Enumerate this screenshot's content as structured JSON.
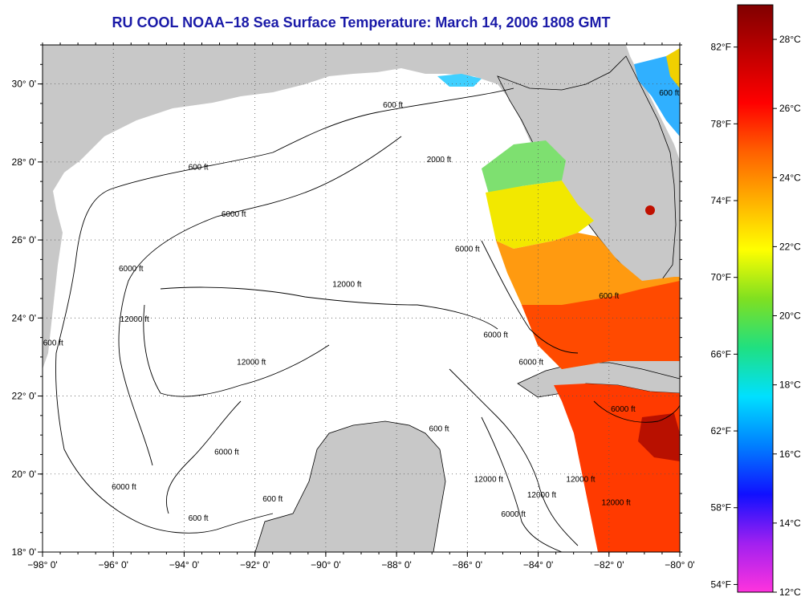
{
  "title": "RU COOL  NOAA−18  Sea Surface Temperature:  March 14, 2006 1808 GMT",
  "map": {
    "lon_range": [
      -98,
      -80
    ],
    "lat_range": [
      18,
      31
    ],
    "lon_ticks": [
      "−98° 0'",
      "−96° 0'",
      "−94° 0'",
      "−92° 0'",
      "−90° 0'",
      "−88° 0'",
      "−86° 0'",
      "−84° 0'",
      "−82° 0'",
      "−80° 0'"
    ],
    "lat_ticks": [
      "18° 0'",
      "20° 0'",
      "22° 0'",
      "24° 0'",
      "26° 0'",
      "28° 0'",
      "30° 0'"
    ],
    "grid": "dotted",
    "colors": {
      "land": "#c8c8c8",
      "ocean_no_data": "#ffffff",
      "contour": "#000000"
    },
    "contour_labels": [
      {
        "text": "600 ft",
        "lon": -88.1,
        "lat": 29.4
      },
      {
        "text": "600 ft",
        "lon": -93.6,
        "lat": 27.8
      },
      {
        "text": "2000 ft",
        "lon": -86.8,
        "lat": 28.0
      },
      {
        "text": "6000 ft",
        "lon": -92.6,
        "lat": 26.6
      },
      {
        "text": "6000 ft",
        "lon": -95.5,
        "lat": 25.2
      },
      {
        "text": "12000 ft",
        "lon": -89.4,
        "lat": 24.8
      },
      {
        "text": "12000 ft",
        "lon": -95.4,
        "lat": 23.9
      },
      {
        "text": "12000 ft",
        "lon": -92.1,
        "lat": 22.8
      },
      {
        "text": "600 ft",
        "lon": -97.7,
        "lat": 23.3
      },
      {
        "text": "6000 ft",
        "lon": -85.2,
        "lat": 23.5
      },
      {
        "text": "6000 ft",
        "lon": -84.2,
        "lat": 22.8
      },
      {
        "text": "6000 ft",
        "lon": -86.0,
        "lat": 25.7
      },
      {
        "text": "600 ft",
        "lon": -82.0,
        "lat": 24.5
      },
      {
        "text": "6000 ft",
        "lon": -92.8,
        "lat": 20.5
      },
      {
        "text": "6000 ft",
        "lon": -95.7,
        "lat": 19.6
      },
      {
        "text": "600 ft",
        "lon": -93.6,
        "lat": 18.8
      },
      {
        "text": "600 ft",
        "lon": -91.5,
        "lat": 19.3
      },
      {
        "text": "600 ft",
        "lon": -80.3,
        "lat": 29.7
      },
      {
        "text": "12000 ft",
        "lon": -82.8,
        "lat": 19.8
      },
      {
        "text": "12000 ft",
        "lon": -83.9,
        "lat": 19.4
      },
      {
        "text": "12000 ft",
        "lon": -85.4,
        "lat": 19.8
      },
      {
        "text": "12000 ft",
        "lon": -81.8,
        "lat": 19.2
      },
      {
        "text": "6000 ft",
        "lon": -84.7,
        "lat": 18.9
      },
      {
        "text": "600 ft",
        "lon": -86.8,
        "lat": 21.1
      },
      {
        "text": "6000 ft",
        "lon": -81.6,
        "lat": 21.6
      }
    ]
  },
  "colorbar": {
    "colors": [
      "#ff33dd",
      "#a020f0",
      "#1010ff",
      "#0080ff",
      "#00e0ff",
      "#20e080",
      "#80e020",
      "#ffff00",
      "#ffb000",
      "#ff6000",
      "#ff0000",
      "#c00000",
      "#800000"
    ],
    "celsius_ticks": [
      {
        "label": "12°C",
        "value": 12
      },
      {
        "label": "14°C",
        "value": 14
      },
      {
        "label": "16°C",
        "value": 16
      },
      {
        "label": "18°C",
        "value": 18
      },
      {
        "label": "20°C",
        "value": 20
      },
      {
        "label": "22°C",
        "value": 22
      },
      {
        "label": "24°C",
        "value": 24
      },
      {
        "label": "26°C",
        "value": 26
      },
      {
        "label": "28°C",
        "value": 28
      }
    ],
    "fahrenheit_ticks": [
      {
        "label": "54°F",
        "value": 54
      },
      {
        "label": "58°F",
        "value": 58
      },
      {
        "label": "62°F",
        "value": 62
      },
      {
        "label": "66°F",
        "value": 66
      },
      {
        "label": "70°F",
        "value": 70
      },
      {
        "label": "74°F",
        "value": 74
      },
      {
        "label": "78°F",
        "value": 78
      },
      {
        "label": "82°F",
        "value": 82
      }
    ],
    "range_c": [
      12,
      29
    ]
  }
}
